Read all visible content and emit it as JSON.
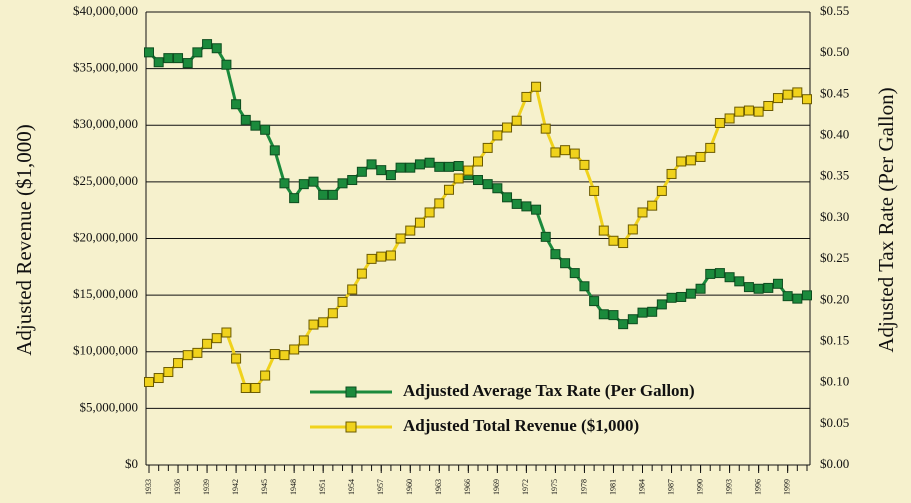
{
  "chart_data": {
    "type": "line",
    "y_label": "Adjusted Revenue ($1,000)",
    "y2_label": "Adjusted Tax Rate (Per Gallon)",
    "x": [
      1933,
      1934,
      1935,
      1936,
      1937,
      1938,
      1939,
      1940,
      1941,
      1942,
      1943,
      1944,
      1945,
      1946,
      1947,
      1948,
      1949,
      1950,
      1951,
      1952,
      1953,
      1954,
      1955,
      1956,
      1957,
      1958,
      1959,
      1960,
      1961,
      1962,
      1963,
      1964,
      1965,
      1966,
      1967,
      1968,
      1969,
      1970,
      1971,
      1972,
      1973,
      1974,
      1975,
      1976,
      1977,
      1978,
      1979,
      1980,
      1981,
      1982,
      1983,
      1984,
      1985,
      1986,
      1987,
      1988,
      1989,
      1990,
      1991,
      1992,
      1993,
      1994,
      1995,
      1996,
      1997,
      1998,
      1999,
      2000,
      2001
    ],
    "xlim": [
      1933,
      2001
    ],
    "xticks": [
      1933,
      1936,
      1939,
      1942,
      1945,
      1948,
      1951,
      1954,
      1957,
      1960,
      1963,
      1966,
      1969,
      1972,
      1975,
      1978,
      1981,
      1984,
      1987,
      1990,
      1993,
      1996,
      1999
    ],
    "ylim": [
      0,
      40000000
    ],
    "yticks": [
      {
        "value": 0,
        "label": "$0"
      },
      {
        "value": 5000000,
        "label": "$5,000,000"
      },
      {
        "value": 10000000,
        "label": "$10,000,000"
      },
      {
        "value": 15000000,
        "label": "$15,000,000"
      },
      {
        "value": 20000000,
        "label": "$20,000,000"
      },
      {
        "value": 25000000,
        "label": "$25,000,000"
      },
      {
        "value": 30000000,
        "label": "$30,000,000"
      },
      {
        "value": 35000000,
        "label": "$35,000,000"
      },
      {
        "value": 40000000,
        "label": "$40,000,000"
      }
    ],
    "y2lim": [
      0,
      0.55
    ],
    "y2ticks": [
      {
        "value": 0,
        "label": "$0.00"
      },
      {
        "value": 0.05,
        "label": "$0.05"
      },
      {
        "value": 0.1,
        "label": "$0.10"
      },
      {
        "value": 0.15,
        "label": "$0.15"
      },
      {
        "value": 0.2,
        "label": "$0.20"
      },
      {
        "value": 0.25,
        "label": "$0.25"
      },
      {
        "value": 0.3,
        "label": "$0.30"
      },
      {
        "value": 0.35,
        "label": "$0.35"
      },
      {
        "value": 0.4,
        "label": "$0.40"
      },
      {
        "value": 0.45,
        "label": "$0.45"
      },
      {
        "value": 0.5,
        "label": "$0.50"
      },
      {
        "value": 0.55,
        "label": "$0.55"
      }
    ],
    "grid": true,
    "series": [
      {
        "name": "Adjusted Average Tax Rate (Per Gallon)",
        "color": "#1b8a3c",
        "axis": "y2",
        "values": [
          0.501,
          0.489,
          0.494,
          0.494,
          0.488,
          0.501,
          0.511,
          0.506,
          0.486,
          0.438,
          0.419,
          0.412,
          0.407,
          0.382,
          0.342,
          0.324,
          0.341,
          0.344,
          0.328,
          0.328,
          0.342,
          0.346,
          0.356,
          0.365,
          0.358,
          0.352,
          0.361,
          0.361,
          0.365,
          0.367,
          0.362,
          0.362,
          0.363,
          0.352,
          0.346,
          0.341,
          0.336,
          0.325,
          0.317,
          0.314,
          0.31,
          0.277,
          0.256,
          0.245,
          0.233,
          0.217,
          0.199,
          0.183,
          0.182,
          0.171,
          0.177,
          0.185,
          0.186,
          0.195,
          0.203,
          0.204,
          0.208,
          0.214,
          0.232,
          0.233,
          0.228,
          0.223,
          0.216,
          0.214,
          0.215,
          0.22,
          0.205,
          0.202,
          0.206
        ]
      },
      {
        "name": "Adjusted Total Revenue ($1,000)",
        "color": "#f0d21c",
        "values": [
          7330000,
          7680000,
          8210000,
          9000000,
          9700000,
          9900000,
          10700000,
          11200000,
          11700000,
          9400000,
          6800000,
          6800000,
          7900000,
          9800000,
          9700000,
          10200000,
          11000000,
          12400000,
          12600000,
          13400000,
          14400000,
          15500000,
          16900000,
          18200000,
          18400000,
          18500000,
          20000000,
          20700000,
          21400000,
          22300000,
          23100000,
          24300000,
          25300000,
          26000000,
          26800000,
          28000000,
          29100000,
          29800000,
          30400000,
          32500000,
          33400000,
          29700000,
          27600000,
          27800000,
          27500000,
          26500000,
          24200000,
          20700000,
          19800000,
          19600000,
          20800000,
          22300000,
          22900000,
          24200000,
          25700000,
          26800000,
          26900000,
          27200000,
          28000000,
          30200000,
          30600000,
          31200000,
          31300000,
          31200000,
          31700000,
          32400000,
          32700000,
          32900000,
          32300000
        ]
      }
    ]
  }
}
